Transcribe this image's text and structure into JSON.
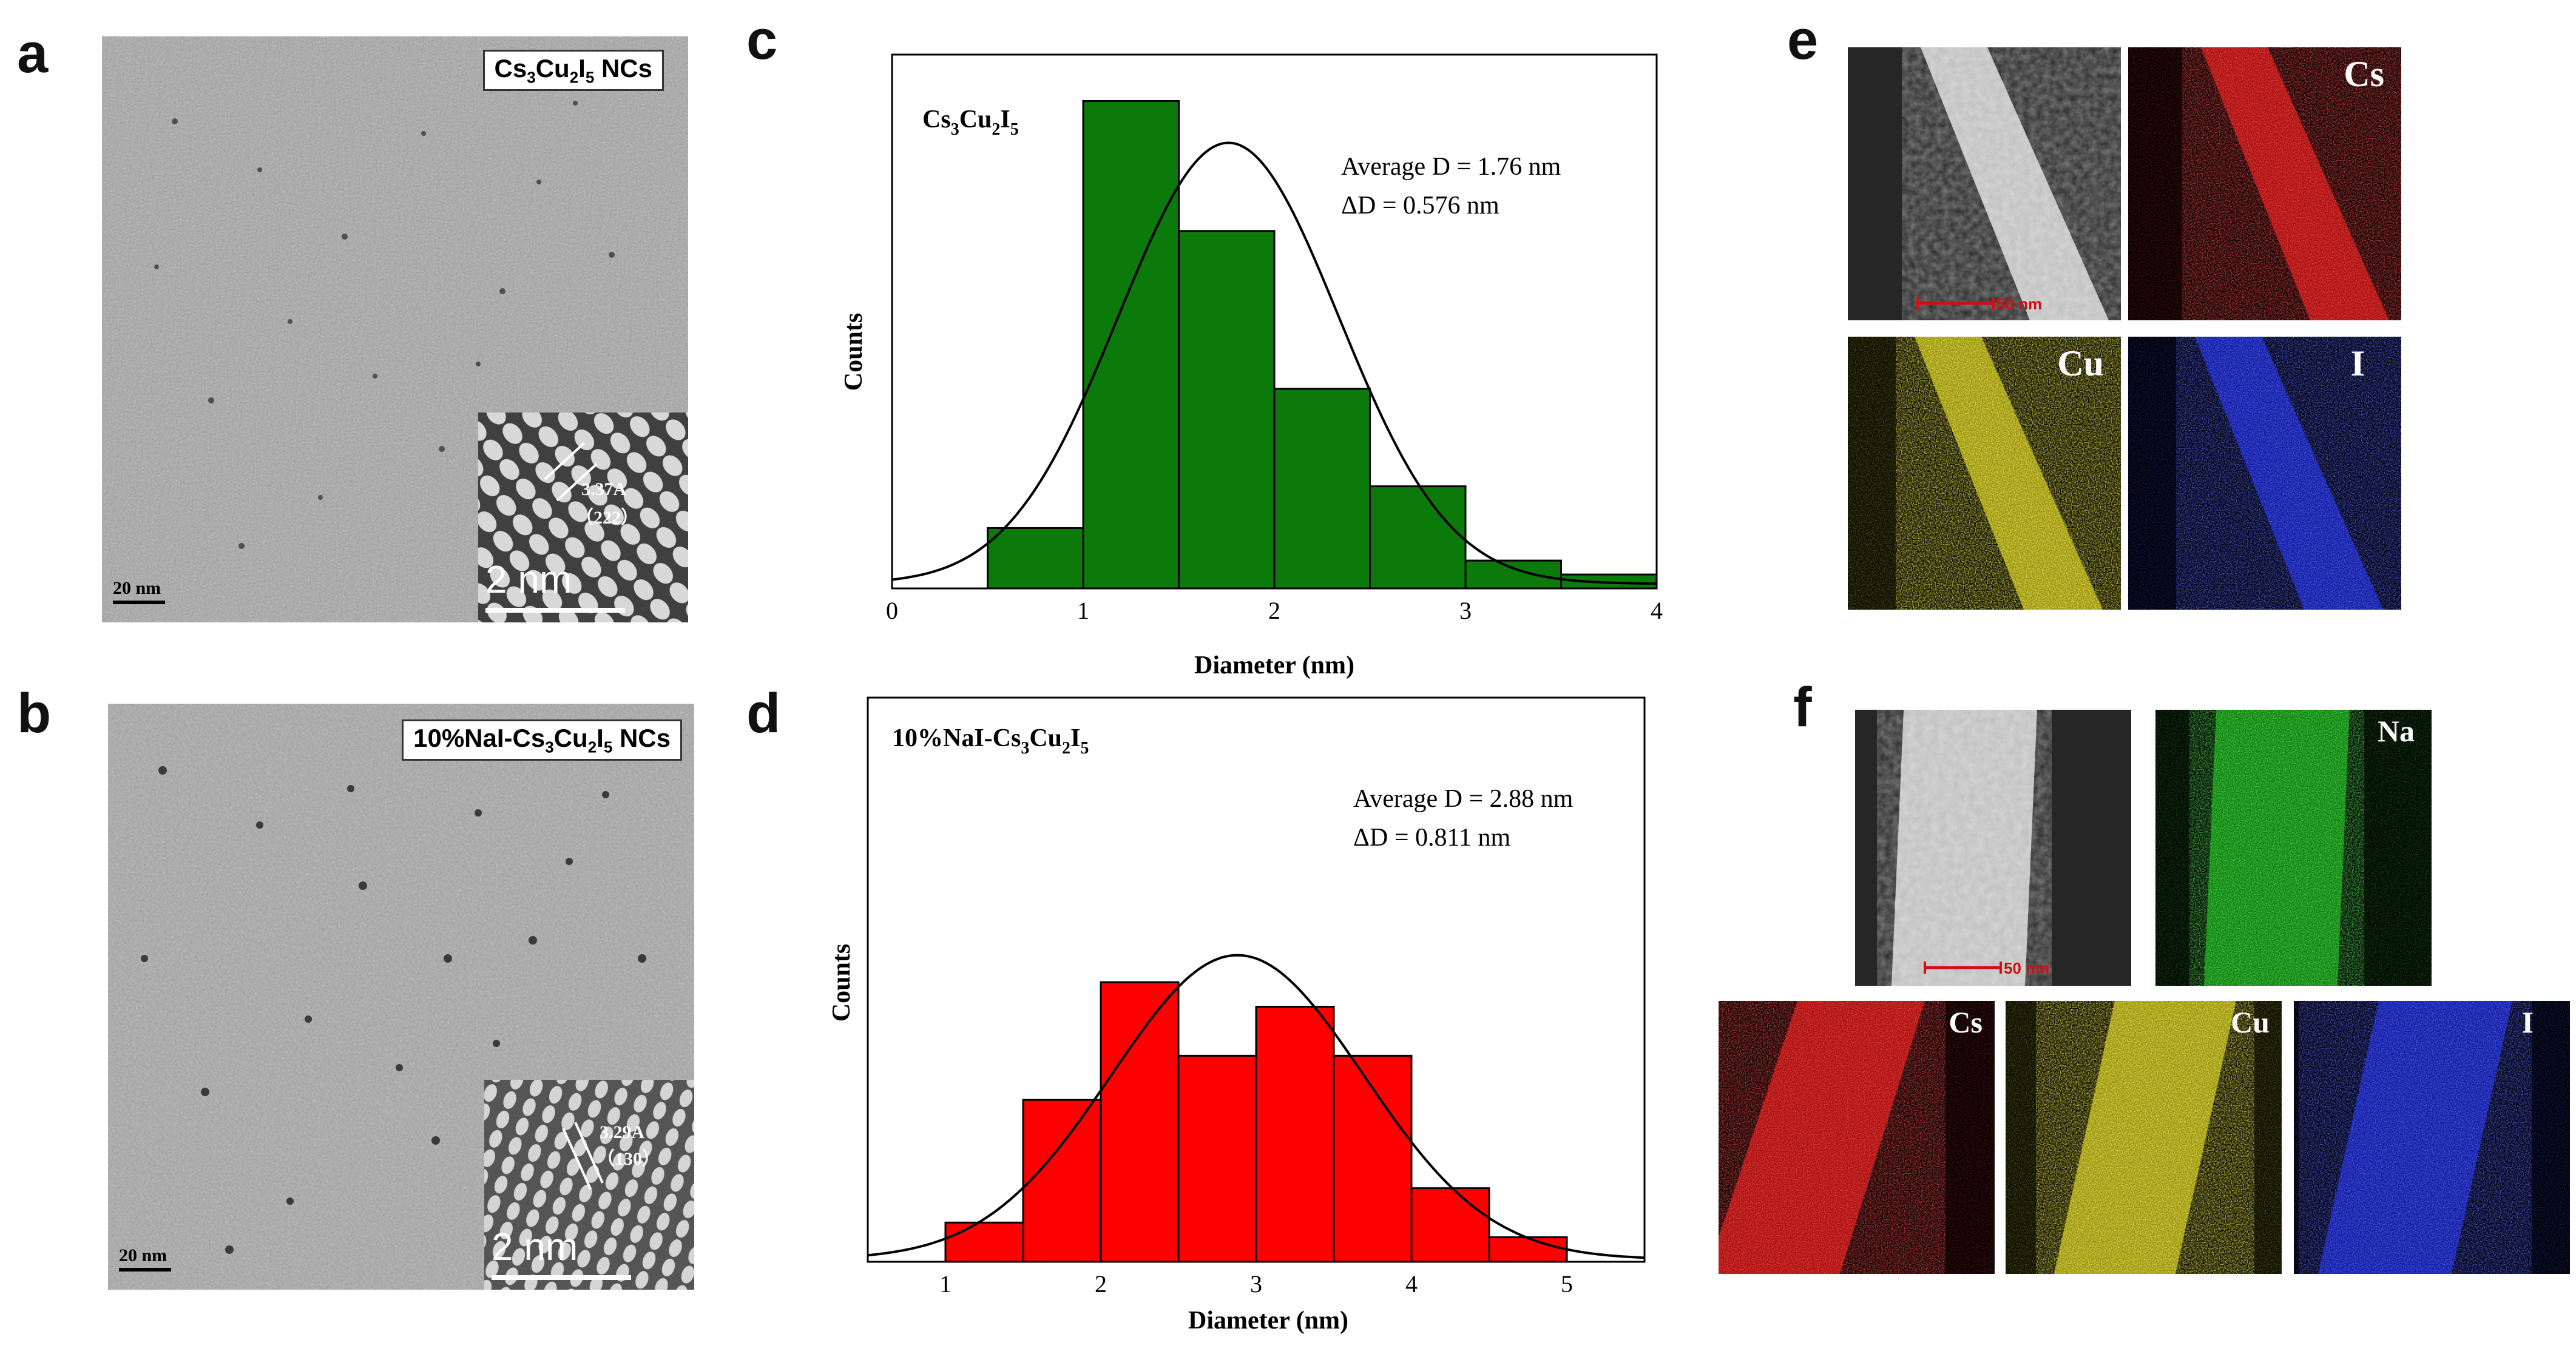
{
  "panels": {
    "a": {
      "letter": "a",
      "caption_parts": [
        "Cs",
        "3",
        "Cu",
        "2",
        "I",
        "5",
        " NCs"
      ],
      "scale": "20 nm",
      "inset_scale": "2 nm",
      "inset_d": "3.37A",
      "inset_plane": "（222）"
    },
    "b": {
      "letter": "b",
      "caption_parts": [
        "10%NaI-Cs",
        "3",
        "Cu",
        "2",
        "I",
        "5",
        " NCs"
      ],
      "scale": "20 nm",
      "inset_scale": "2 nm",
      "inset_d": "3.29A",
      "inset_plane": "（130）"
    },
    "c": {
      "letter": "c"
    },
    "d": {
      "letter": "d"
    },
    "e": {
      "letter": "e",
      "maps": [
        "",
        "Cs",
        "Cu",
        "I"
      ],
      "scale": "50 nm"
    },
    "f": {
      "letter": "f",
      "maps": [
        "",
        "Na",
        "Cs",
        "Cu",
        "I"
      ],
      "scale": "50 nm"
    }
  },
  "colors": {
    "green_bar": "#0b7a0b",
    "red_bar": "#ff0000",
    "cs": "#e01515",
    "cu": "#e8e020",
    "i": "#1a2ae0",
    "na": "#18b018"
  },
  "chart_data": [
    {
      "id": "c",
      "type": "bar",
      "subtype": "histogram",
      "title_parts": [
        "Cs",
        "3",
        "Cu",
        "2",
        "I",
        "5"
      ],
      "xlabel": "Diameter (nm)",
      "ylabel": "Counts",
      "xlim": [
        0,
        4
      ],
      "ylim": [
        0,
        11.5
      ],
      "xticks": [
        0,
        1,
        2,
        3,
        4
      ],
      "bin_edges": [
        0.5,
        1.0,
        1.5,
        2.0,
        2.5,
        3.0,
        3.5,
        4.0
      ],
      "values": [
        1.3,
        10.5,
        7.7,
        4.3,
        2.2,
        0.6,
        0.3
      ],
      "fit": {
        "type": "gaussian",
        "mean": 1.76,
        "sigma": 0.576,
        "peak": 9.5,
        "baseline": 0.1
      },
      "annotations": [
        "Average D = 1.76 nm",
        "ΔD = 0.576 nm"
      ]
    },
    {
      "id": "d",
      "type": "bar",
      "subtype": "histogram",
      "title_parts": [
        "10%NaI-Cs",
        "3",
        "Cu",
        "2",
        "I",
        "5"
      ],
      "xlabel": "Diameter (nm)",
      "ylabel": "Counts",
      "xlim": [
        0.5,
        5.5
      ],
      "ylim": [
        0,
        11.5
      ],
      "xticks": [
        1,
        2,
        3,
        4,
        5
      ],
      "bin_edges": [
        1.0,
        1.5,
        2.0,
        2.5,
        3.0,
        3.5,
        4.0,
        4.5,
        5.0
      ],
      "values": [
        0.8,
        3.3,
        5.7,
        4.2,
        5.2,
        4.2,
        1.5,
        0.5
      ],
      "fit": {
        "type": "gaussian",
        "mean": 2.88,
        "sigma": 0.811,
        "peak": 6.2,
        "baseline": 0.05
      },
      "annotations": [
        "Average D = 2.88 nm",
        "ΔD = 0.811 nm"
      ]
    }
  ]
}
